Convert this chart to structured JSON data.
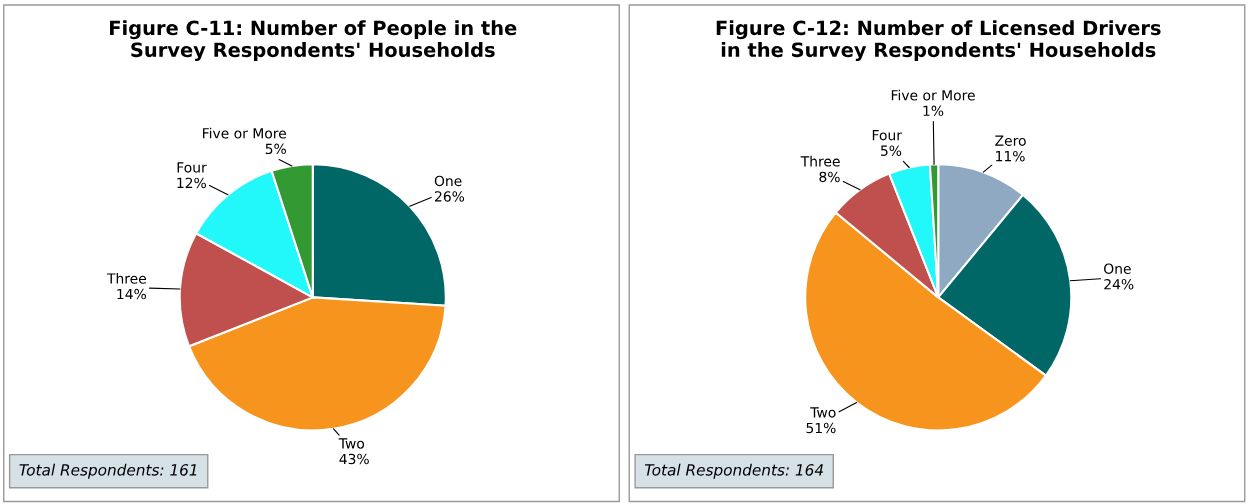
{
  "chart_data": [
    {
      "type": "pie",
      "title": "Figure C-11: Number of People in the Survey Respondents' Households",
      "categories": [
        "One",
        "Two",
        "Three",
        "Four",
        "Five or More"
      ],
      "values": [
        26,
        43,
        14,
        12,
        5
      ],
      "value_labels": [
        "26%",
        "43%",
        "14%",
        "12%",
        "5%"
      ],
      "colors": [
        "#006666",
        "#f7941d",
        "#c0504d",
        "#22f7fa",
        "#339933"
      ],
      "annotations": [
        "Total Respondents: 161"
      ],
      "legend": false
    },
    {
      "type": "pie",
      "title": "Figure C-12: Number of Licensed Drivers in the Survey Respondents' Households",
      "categories": [
        "Zero",
        "One",
        "Two",
        "Three",
        "Four",
        "Five or More"
      ],
      "values": [
        11,
        24,
        51,
        8,
        5,
        1
      ],
      "value_labels": [
        "11%",
        "24%",
        "51%",
        "8%",
        "5%",
        "1%"
      ],
      "colors": [
        "#8ea9c1",
        "#006666",
        "#f7941d",
        "#c0504d",
        "#22f7fa",
        "#339933"
      ],
      "annotations": [
        "Total Respondents: 164"
      ],
      "legend": false
    }
  ]
}
